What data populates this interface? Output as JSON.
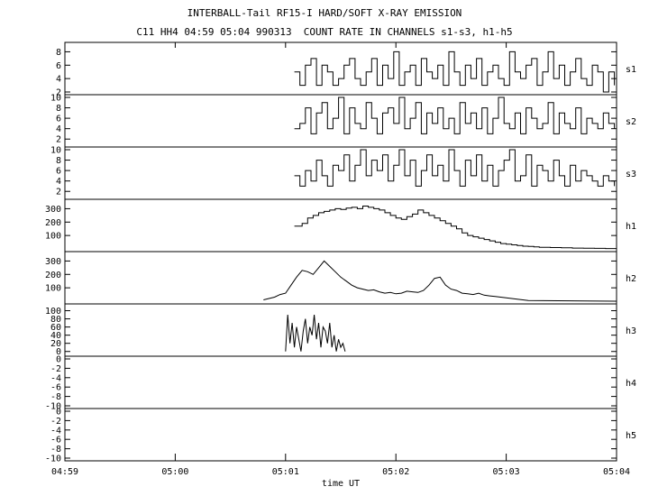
{
  "title": "INTERBALL-Tail RF15-I HARD/SOFT X-RAY EMISSION",
  "subtitle": "C11 HH4 04:59 05:04 990313  COUNT RATE IN CHANNELS s1-s3, h1-h5",
  "chart_data": {
    "type": "line",
    "xlabel": "time UT",
    "x_tick_labels": [
      "04:59",
      "05:00",
      "05:01",
      "05:02",
      "05:03",
      "05:04"
    ],
    "x_range_minutes": [
      0,
      5
    ],
    "panels": [
      {
        "name": "s1",
        "ylim": [
          2,
          9
        ],
        "yticks": [
          2,
          4,
          6,
          8
        ],
        "x_minutes": [
          2.08,
          2.13,
          2.18,
          2.23,
          2.28,
          2.33,
          2.38,
          2.43,
          2.48,
          2.53,
          2.58,
          2.63,
          2.68,
          2.73,
          2.78,
          2.83,
          2.88,
          2.93,
          2.98,
          3.03,
          3.08,
          3.13,
          3.18,
          3.23,
          3.28,
          3.33,
          3.38,
          3.43,
          3.48,
          3.53,
          3.58,
          3.63,
          3.68,
          3.73,
          3.78,
          3.83,
          3.88,
          3.93,
          3.98,
          4.03,
          4.08,
          4.13,
          4.18,
          4.23,
          4.28,
          4.33,
          4.38,
          4.43,
          4.48,
          4.53,
          4.58,
          4.63,
          4.68,
          4.73,
          4.78,
          4.83,
          4.88,
          4.93,
          4.98
        ],
        "values": [
          5,
          3,
          6,
          7,
          3,
          6,
          5,
          3,
          4,
          6,
          7,
          4,
          3,
          5,
          7,
          3,
          6,
          4,
          8,
          3,
          5,
          6,
          3,
          7,
          5,
          4,
          6,
          3,
          8,
          5,
          3,
          6,
          4,
          7,
          3,
          5,
          6,
          4,
          3,
          8,
          5,
          4,
          6,
          7,
          3,
          5,
          8,
          4,
          6,
          3,
          5,
          7,
          4,
          3,
          6,
          5,
          2,
          5,
          3
        ],
        "step": true
      },
      {
        "name": "s2",
        "ylim": [
          1,
          10
        ],
        "yticks": [
          2,
          4,
          6,
          8,
          10
        ],
        "x_minutes": [
          2.08,
          2.13,
          2.18,
          2.23,
          2.28,
          2.33,
          2.38,
          2.43,
          2.48,
          2.53,
          2.58,
          2.63,
          2.68,
          2.73,
          2.78,
          2.83,
          2.88,
          2.93,
          2.98,
          3.03,
          3.08,
          3.13,
          3.18,
          3.23,
          3.28,
          3.33,
          3.38,
          3.43,
          3.48,
          3.53,
          3.58,
          3.63,
          3.68,
          3.73,
          3.78,
          3.83,
          3.88,
          3.93,
          3.98,
          4.03,
          4.08,
          4.13,
          4.18,
          4.23,
          4.28,
          4.33,
          4.38,
          4.43,
          4.48,
          4.53,
          4.58,
          4.63,
          4.68,
          4.73,
          4.78,
          4.83,
          4.88,
          4.93,
          4.98
        ],
        "values": [
          4,
          5,
          8,
          3,
          7,
          9,
          4,
          6,
          10,
          3,
          8,
          5,
          4,
          9,
          6,
          3,
          7,
          8,
          5,
          10,
          4,
          6,
          9,
          3,
          7,
          5,
          8,
          4,
          6,
          3,
          9,
          5,
          7,
          4,
          8,
          3,
          6,
          10,
          5,
          4,
          7,
          3,
          8,
          6,
          4,
          5,
          9,
          3,
          7,
          5,
          4,
          8,
          3,
          6,
          5,
          4,
          7,
          5,
          4
        ],
        "step": true
      },
      {
        "name": "s3",
        "ylim": [
          1,
          10
        ],
        "yticks": [
          2,
          4,
          6,
          8,
          10
        ],
        "x_minutes": [
          2.08,
          2.13,
          2.18,
          2.23,
          2.28,
          2.33,
          2.38,
          2.43,
          2.48,
          2.53,
          2.58,
          2.63,
          2.68,
          2.73,
          2.78,
          2.83,
          2.88,
          2.93,
          2.98,
          3.03,
          3.08,
          3.13,
          3.18,
          3.23,
          3.28,
          3.33,
          3.38,
          3.43,
          3.48,
          3.53,
          3.58,
          3.63,
          3.68,
          3.73,
          3.78,
          3.83,
          3.88,
          3.93,
          3.98,
          4.03,
          4.08,
          4.13,
          4.18,
          4.23,
          4.28,
          4.33,
          4.38,
          4.43,
          4.48,
          4.53,
          4.58,
          4.63,
          4.68,
          4.73,
          4.78,
          4.83,
          4.88,
          4.93,
          4.98
        ],
        "values": [
          5,
          3,
          6,
          4,
          8,
          5,
          3,
          7,
          6,
          9,
          4,
          7,
          10,
          5,
          8,
          6,
          9,
          4,
          7,
          10,
          5,
          8,
          3,
          6,
          9,
          5,
          7,
          4,
          10,
          6,
          3,
          8,
          5,
          9,
          4,
          7,
          3,
          6,
          8,
          10,
          4,
          5,
          9,
          3,
          7,
          6,
          4,
          8,
          5,
          3,
          7,
          4,
          6,
          5,
          4,
          3,
          5,
          4,
          3
        ],
        "step": true
      },
      {
        "name": "h1",
        "ylim": [
          0,
          350
        ],
        "yticks": [
          100,
          200,
          300
        ],
        "x_minutes": [
          2.08,
          2.15,
          2.2,
          2.25,
          2.3,
          2.35,
          2.4,
          2.45,
          2.5,
          2.55,
          2.6,
          2.65,
          2.7,
          2.75,
          2.8,
          2.85,
          2.9,
          2.95,
          3.0,
          3.05,
          3.1,
          3.15,
          3.2,
          3.25,
          3.3,
          3.35,
          3.4,
          3.45,
          3.5,
          3.55,
          3.6,
          3.65,
          3.7,
          3.75,
          3.8,
          3.85,
          3.9,
          3.95,
          4.0,
          4.05,
          4.1,
          4.15,
          4.2,
          4.25,
          4.3,
          4.4,
          4.5,
          4.6,
          4.7,
          4.8,
          4.9,
          5.0
        ],
        "values": [
          170,
          190,
          230,
          250,
          270,
          280,
          290,
          300,
          295,
          305,
          310,
          300,
          320,
          310,
          300,
          290,
          270,
          250,
          230,
          220,
          240,
          260,
          290,
          270,
          250,
          230,
          210,
          190,
          170,
          150,
          120,
          100,
          90,
          80,
          70,
          60,
          50,
          40,
          35,
          30,
          25,
          20,
          18,
          15,
          12,
          10,
          8,
          6,
          5,
          4,
          3,
          3
        ],
        "step": true
      },
      {
        "name": "h2",
        "ylim": [
          0,
          350
        ],
        "yticks": [
          100,
          200,
          300
        ],
        "x_minutes": [
          1.8,
          1.85,
          1.9,
          1.95,
          2.0,
          2.05,
          2.1,
          2.15,
          2.2,
          2.25,
          2.3,
          2.35,
          2.4,
          2.45,
          2.5,
          2.55,
          2.6,
          2.65,
          2.7,
          2.75,
          2.8,
          2.85,
          2.9,
          2.95,
          3.0,
          3.05,
          3.1,
          3.15,
          3.2,
          3.25,
          3.3,
          3.35,
          3.4,
          3.45,
          3.5,
          3.55,
          3.6,
          3.65,
          3.7,
          3.75,
          3.8,
          3.85,
          3.9,
          3.95,
          4.0,
          4.05,
          4.1,
          4.15,
          4.2,
          5.0
        ],
        "values": [
          10,
          20,
          30,
          50,
          60,
          120,
          180,
          230,
          220,
          200,
          250,
          300,
          260,
          220,
          180,
          150,
          120,
          100,
          90,
          80,
          85,
          70,
          60,
          65,
          55,
          60,
          75,
          70,
          65,
          80,
          120,
          170,
          180,
          120,
          90,
          80,
          60,
          55,
          50,
          60,
          45,
          40,
          35,
          30,
          25,
          20,
          15,
          10,
          5,
          0
        ],
        "step": false
      },
      {
        "name": "h3",
        "ylim": [
          -5,
          110
        ],
        "yticks": [
          0,
          20,
          40,
          60,
          80,
          100
        ],
        "x_minutes": [
          2.0,
          2.02,
          2.04,
          2.06,
          2.08,
          2.1,
          2.12,
          2.14,
          2.16,
          2.18,
          2.2,
          2.22,
          2.24,
          2.26,
          2.28,
          2.3,
          2.32,
          2.34,
          2.36,
          2.38,
          2.4,
          2.42,
          2.44,
          2.46,
          2.48,
          2.5,
          2.52,
          2.54
        ],
        "values": [
          0,
          90,
          20,
          70,
          10,
          60,
          30,
          0,
          50,
          80,
          20,
          60,
          40,
          90,
          30,
          70,
          10,
          60,
          50,
          20,
          70,
          10,
          40,
          0,
          30,
          10,
          20,
          0
        ],
        "step": false
      },
      {
        "name": "h4",
        "ylim": [
          -10,
          0
        ],
        "yticks": [
          -10,
          -8,
          -6,
          -4,
          -2,
          0
        ],
        "x_minutes": [],
        "values": [],
        "step": false
      },
      {
        "name": "h5",
        "ylim": [
          -10,
          0
        ],
        "yticks": [
          -10,
          -8,
          -6,
          -4,
          -2,
          0
        ],
        "x_minutes": [],
        "values": [],
        "step": false
      }
    ]
  }
}
